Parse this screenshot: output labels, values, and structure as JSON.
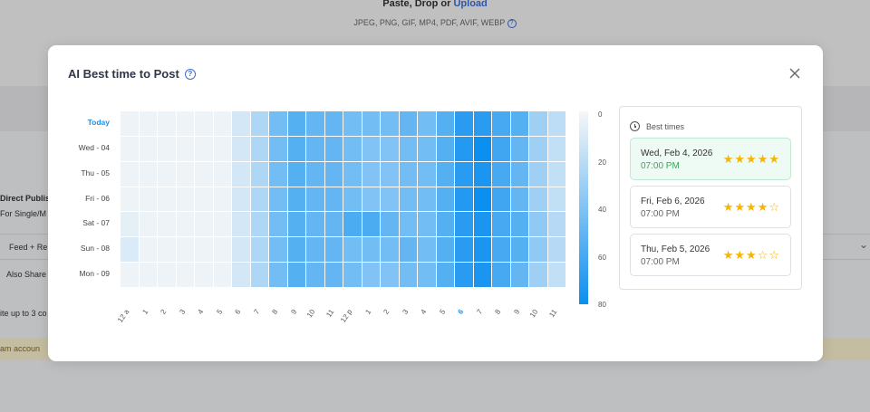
{
  "background": {
    "paste_label": "Paste, Drop or ",
    "upload_label": "Upload",
    "formats": "JPEG, PNG, GIF, MP4, PDF, AVIF, WEBP",
    "direct_publish": "Direct Publis",
    "for_single": "For Single/M",
    "feed": "Feed + Re",
    "also_share": "Also Share",
    "up_to": "ite up to 3 co",
    "account": "am accoun"
  },
  "modal": {
    "title": "AI Best time to Post",
    "close_label": "×"
  },
  "heatmap": {
    "rows": [
      "Today",
      "Wed - 04",
      "Thu - 05",
      "Fri - 06",
      "Sat - 07",
      "Sun - 08",
      "Mon - 09"
    ],
    "columns": [
      "12 a",
      "1",
      "2",
      "3",
      "4",
      "5",
      "6",
      "7",
      "8",
      "9",
      "10",
      "11",
      "12 p",
      "1",
      "2",
      "3",
      "4",
      "5",
      "6",
      "7",
      "8",
      "9",
      "10",
      "11"
    ],
    "active_column": 18,
    "scale": [
      "0",
      "20",
      "40",
      "60",
      "80"
    ],
    "scale_range": [
      0,
      80
    ],
    "colors": {
      "low": "#f7f7f7",
      "high": "#0b8ff0"
    },
    "values": [
      [
        3,
        3,
        3,
        3,
        3,
        3,
        12,
        25,
        45,
        55,
        50,
        50,
        45,
        45,
        45,
        50,
        45,
        55,
        70,
        70,
        60,
        55,
        30,
        20
      ],
      [
        3,
        3,
        3,
        3,
        3,
        3,
        12,
        25,
        45,
        55,
        50,
        50,
        45,
        40,
        40,
        45,
        45,
        55,
        72,
        80,
        62,
        50,
        30,
        18
      ],
      [
        3,
        3,
        3,
        3,
        3,
        3,
        12,
        25,
        45,
        55,
        50,
        50,
        45,
        40,
        40,
        45,
        45,
        55,
        70,
        75,
        60,
        50,
        30,
        18
      ],
      [
        3,
        3,
        3,
        3,
        3,
        3,
        12,
        25,
        45,
        55,
        50,
        50,
        45,
        40,
        40,
        45,
        45,
        55,
        72,
        80,
        62,
        50,
        30,
        18
      ],
      [
        6,
        3,
        3,
        3,
        3,
        3,
        12,
        25,
        45,
        55,
        50,
        50,
        58,
        58,
        50,
        45,
        45,
        55,
        70,
        75,
        60,
        55,
        35,
        22
      ],
      [
        10,
        3,
        3,
        3,
        3,
        3,
        12,
        25,
        45,
        55,
        50,
        50,
        45,
        45,
        45,
        50,
        45,
        55,
        70,
        75,
        60,
        55,
        35,
        22
      ],
      [
        3,
        3,
        3,
        3,
        3,
        3,
        12,
        25,
        45,
        55,
        50,
        50,
        45,
        40,
        40,
        45,
        45,
        55,
        70,
        75,
        60,
        50,
        30,
        18
      ]
    ]
  },
  "best_times": {
    "heading": "Best times",
    "items": [
      {
        "date": "Wed, Feb 4, 2026",
        "time": "07:00 PM",
        "stars": 5
      },
      {
        "date": "Fri, Feb 6, 2026",
        "time": "07:00 PM",
        "stars": 4
      },
      {
        "date": "Thu, Feb 5, 2026",
        "time": "07:00 PM",
        "stars": 3
      }
    ]
  }
}
